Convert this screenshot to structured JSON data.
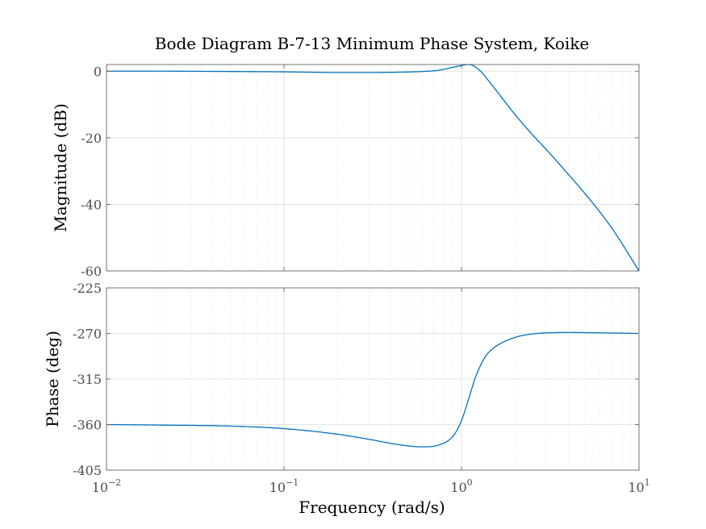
{
  "chart_data": {
    "type": "line",
    "title": "Bode Diagram B-7-13 Minimum Phase System, Koike",
    "xlabel": "Frequency (rad/s)",
    "xscale": "log",
    "xlim": [
      0.01,
      10
    ],
    "x_tick_labels": [
      {
        "base": "10",
        "exp": "−2"
      },
      {
        "base": "10",
        "exp": "−1"
      },
      {
        "base": "10",
        "exp": "0"
      },
      {
        "base": "10",
        "exp": "1"
      }
    ],
    "grid": true,
    "subplots": [
      {
        "name": "magnitude",
        "ylabel": "Magnitude (dB)",
        "ylim": [
          -60,
          2
        ],
        "yticks": [
          0,
          -20,
          -40,
          -60
        ],
        "ytick_labels": [
          "0",
          "-20",
          "-40",
          "-60"
        ],
        "series": [
          {
            "color": "#0072bd",
            "x": [
              0.01,
              0.02,
              0.05,
              0.1,
              0.2,
              0.3,
              0.45,
              0.6,
              0.75,
              0.9,
              1.0,
              1.1,
              1.25,
              1.5,
              2.0,
              2.5,
              3.0,
              4.0,
              5.0,
              7.0,
              10.0
            ],
            "y": [
              0,
              0,
              -0.1,
              -0.2,
              -0.4,
              -0.4,
              -0.3,
              -0.1,
              0.3,
              1.2,
              1.7,
              2.0,
              0.5,
              -4.5,
              -13.0,
              -19.0,
              -23.5,
              -31.0,
              -37.0,
              -47.0,
              -60.0
            ]
          }
        ]
      },
      {
        "name": "phase",
        "ylabel": "Phase (deg)",
        "ylim": [
          -405,
          -225
        ],
        "yticks": [
          -225,
          -270,
          -315,
          -360,
          -405
        ],
        "ytick_labels": [
          "-225",
          "-270",
          "-315",
          "-360",
          "-405"
        ],
        "series": [
          {
            "color": "#0072bd",
            "x": [
              0.01,
              0.02,
              0.05,
              0.1,
              0.2,
              0.3,
              0.45,
              0.6,
              0.75,
              0.9,
              1.0,
              1.1,
              1.2,
              1.35,
              1.5,
              2.0,
              2.5,
              3.0,
              4.0,
              5.0,
              7.0,
              10.0
            ],
            "y": [
              -360,
              -360.5,
              -361.5,
              -364,
              -369.5,
              -374.5,
              -380,
              -382,
              -380,
              -371,
              -356,
              -334,
              -313,
              -294,
              -285,
              -274,
              -270.5,
              -269.5,
              -269,
              -269.2,
              -269.6,
              -270
            ]
          }
        ]
      }
    ]
  }
}
